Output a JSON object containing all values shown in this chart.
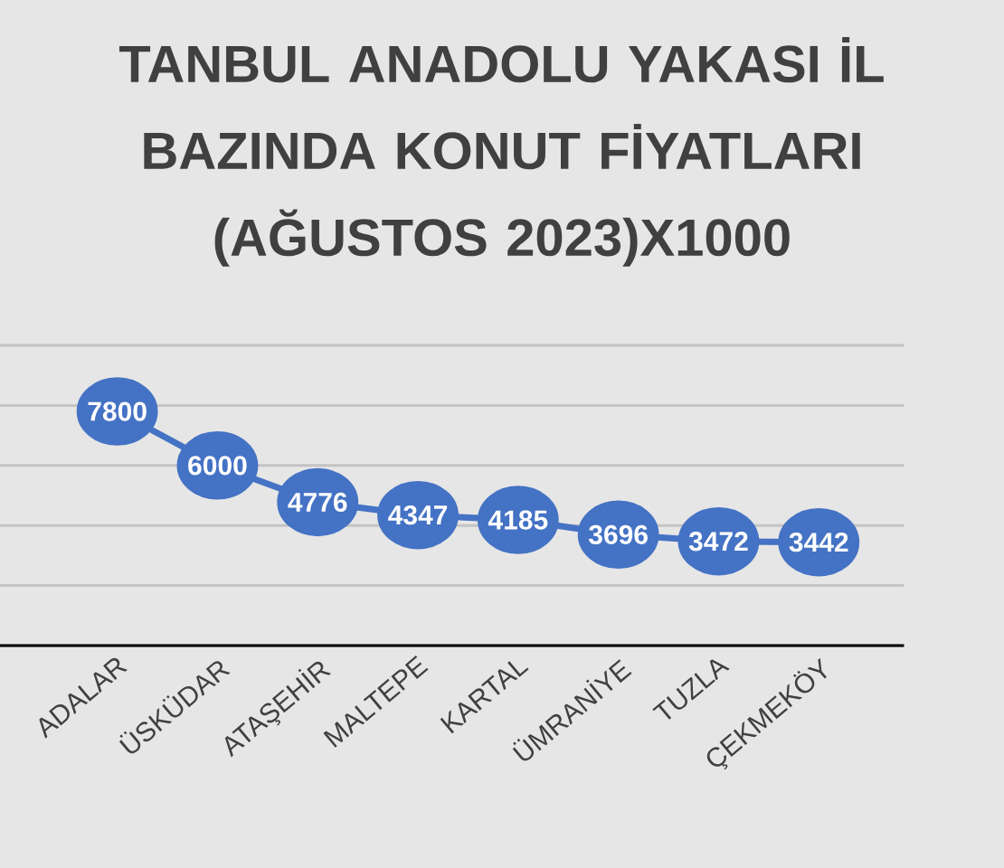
{
  "chart_data": {
    "type": "line",
    "title": "TANBUL ANADOLU YAKASI İL BAZINDA KONUT FİYATLARI (AĞUSTOS 2023)X1000",
    "categories": [
      null,
      "ADALAR",
      "ÜSKÜDAR",
      "ATAŞEHİR",
      "MALTEPE",
      "KARTAL",
      "ÜMRANİYE",
      "TUZLA",
      "ÇEKMEKÖY",
      null
    ],
    "values": [
      null,
      7800,
      6000,
      4776,
      4347,
      4185,
      3696,
      3472,
      3442,
      null
    ],
    "color": "#4472c4",
    "marker": "circle",
    "data_labels": true,
    "grid": "y",
    "tick_labels": "x",
    "ylim": [
      0,
      10000
    ],
    "yticks": [
      {
        "value": 0,
        "label": null
      },
      {
        "value": 2000,
        "label": null
      },
      {
        "value": 4000,
        "label": null
      },
      {
        "value": 6000,
        "label": null
      },
      {
        "value": 8000,
        "label": null
      },
      {
        "value": 10000,
        "label": null
      }
    ]
  }
}
